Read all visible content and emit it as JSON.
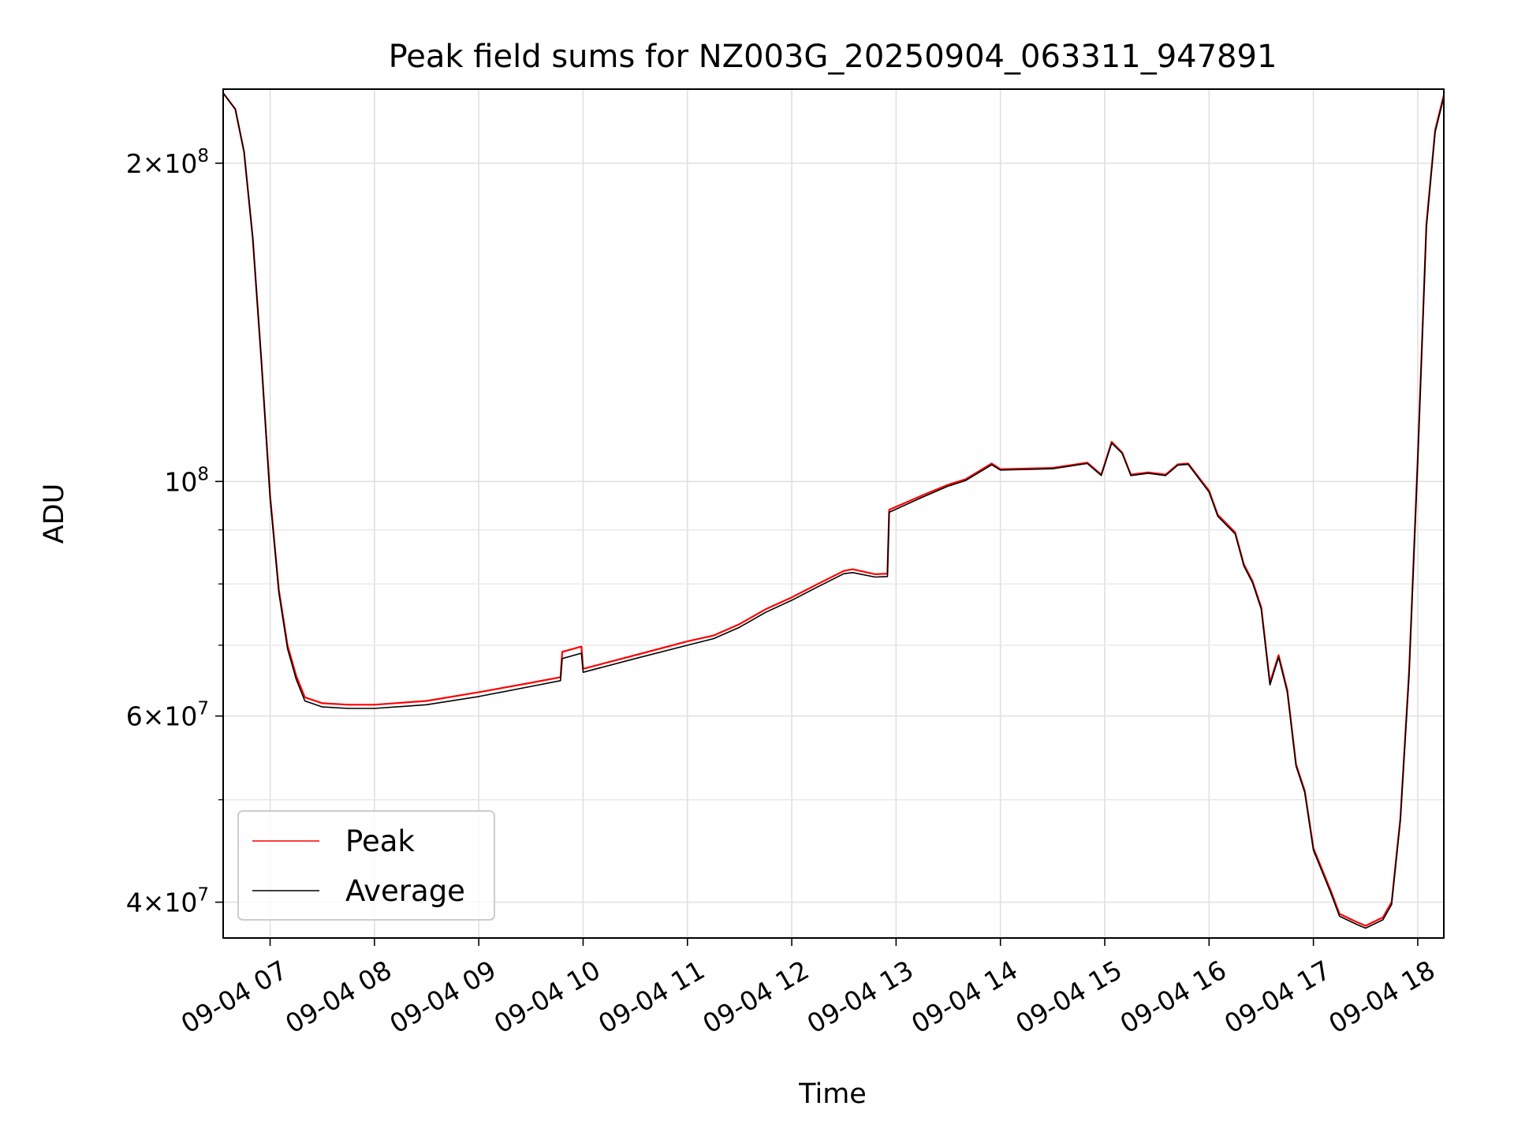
{
  "chart_data": {
    "type": "line",
    "title": "Peak field sums for NZ003G_20250904_063311_947891",
    "xlabel": "Time",
    "ylabel": "ADU",
    "y_scale": "log",
    "xlim": [
      "2025-09-04 06:33",
      "2025-09-04 18:15"
    ],
    "ylim": [
      37000000,
      235000000
    ],
    "grid": true,
    "legend_position": "lower-left",
    "x_tick_labels": [
      "09-04 07",
      "09-04 08",
      "09-04 09",
      "09-04 10",
      "09-04 11",
      "09-04 12",
      "09-04 13",
      "09-04 14",
      "09-04 15",
      "09-04 16",
      "09-04 17",
      "09-04 18"
    ],
    "y_tick_labels": [
      {
        "value": 200000000,
        "mantissa": "2",
        "exponent": "8"
      },
      {
        "value": 100000000,
        "mantissa": "",
        "exponent": "8"
      },
      {
        "value": 60000000,
        "mantissa": "6",
        "exponent": "7"
      },
      {
        "value": 40000000,
        "mantissa": "4",
        "exponent": "7"
      }
    ],
    "series": [
      {
        "name": "Peak",
        "color": "#ff0000",
        "x": [
          "2025-09-04 06:33",
          "2025-09-04 06:40",
          "2025-09-04 06:45",
          "2025-09-04 06:50",
          "2025-09-04 06:55",
          "2025-09-04 07:00",
          "2025-09-04 07:05",
          "2025-09-04 07:10",
          "2025-09-04 07:15",
          "2025-09-04 07:20",
          "2025-09-04 07:30",
          "2025-09-04 07:45",
          "2025-09-04 08:00",
          "2025-09-04 08:30",
          "2025-09-04 09:00",
          "2025-09-04 09:30",
          "2025-09-04 09:47",
          "2025-09-04 09:48",
          "2025-09-04 09:59",
          "2025-09-04 10:00",
          "2025-09-04 10:30",
          "2025-09-04 11:00",
          "2025-09-04 11:15",
          "2025-09-04 11:30",
          "2025-09-04 11:45",
          "2025-09-04 12:00",
          "2025-09-04 12:15",
          "2025-09-04 12:30",
          "2025-09-04 12:35",
          "2025-09-04 12:48",
          "2025-09-04 12:55",
          "2025-09-04 12:56",
          "2025-09-04 13:15",
          "2025-09-04 13:30",
          "2025-09-04 13:40",
          "2025-09-04 13:55",
          "2025-09-04 14:00",
          "2025-09-04 14:30",
          "2025-09-04 14:50",
          "2025-09-04 14:58",
          "2025-09-04 15:04",
          "2025-09-04 15:10",
          "2025-09-04 15:15",
          "2025-09-04 15:25",
          "2025-09-04 15:35",
          "2025-09-04 15:42",
          "2025-09-04 15:48",
          "2025-09-04 16:00",
          "2025-09-04 16:05",
          "2025-09-04 16:15",
          "2025-09-04 16:20",
          "2025-09-04 16:25",
          "2025-09-04 16:30",
          "2025-09-04 16:35",
          "2025-09-04 16:40",
          "2025-09-04 16:45",
          "2025-09-04 16:50",
          "2025-09-04 16:55",
          "2025-09-04 17:00",
          "2025-09-04 17:10",
          "2025-09-04 17:15",
          "2025-09-04 17:25",
          "2025-09-04 17:30",
          "2025-09-04 17:40",
          "2025-09-04 17:45",
          "2025-09-04 17:50",
          "2025-09-04 17:55",
          "2025-09-04 18:00",
          "2025-09-04 18:05",
          "2025-09-04 18:10",
          "2025-09-04 18:15"
        ],
        "y": [
          233000000,
          225000000,
          205000000,
          170000000,
          130000000,
          97000000,
          79000000,
          70000000,
          65500000,
          62500000,
          61700000,
          61500000,
          61500000,
          62000000,
          63200000,
          64500000,
          65300000,
          69000000,
          69800000,
          66500000,
          68500000,
          70600000,
          71500000,
          73300000,
          75700000,
          77700000,
          80000000,
          82300000,
          82600000,
          81700000,
          81800000,
          94000000,
          97000000,
          99300000,
          100500000,
          104000000,
          102700000,
          103000000,
          104200000,
          101500000,
          109000000,
          106500000,
          101500000,
          102000000,
          101500000,
          103800000,
          104000000,
          98000000,
          93000000,
          89500000,
          83500000,
          80500000,
          76000000,
          64500000,
          68500000,
          63500000,
          54000000,
          51000000,
          45000000,
          41000000,
          39000000,
          38300000,
          38000000,
          38700000,
          40000000,
          48000000,
          66000000,
          105000000,
          175000000,
          215000000,
          232000000
        ]
      },
      {
        "name": "Average",
        "color": "#000000",
        "x": [
          "2025-09-04 06:33",
          "2025-09-04 06:40",
          "2025-09-04 06:45",
          "2025-09-04 06:50",
          "2025-09-04 06:55",
          "2025-09-04 07:00",
          "2025-09-04 07:05",
          "2025-09-04 07:10",
          "2025-09-04 07:15",
          "2025-09-04 07:20",
          "2025-09-04 07:30",
          "2025-09-04 07:45",
          "2025-09-04 08:00",
          "2025-09-04 08:30",
          "2025-09-04 09:00",
          "2025-09-04 09:30",
          "2025-09-04 09:47",
          "2025-09-04 09:48",
          "2025-09-04 09:59",
          "2025-09-04 10:00",
          "2025-09-04 10:30",
          "2025-09-04 11:00",
          "2025-09-04 11:15",
          "2025-09-04 11:30",
          "2025-09-04 11:45",
          "2025-09-04 12:00",
          "2025-09-04 12:15",
          "2025-09-04 12:30",
          "2025-09-04 12:35",
          "2025-09-04 12:48",
          "2025-09-04 12:55",
          "2025-09-04 12:56",
          "2025-09-04 13:15",
          "2025-09-04 13:30",
          "2025-09-04 13:40",
          "2025-09-04 13:55",
          "2025-09-04 14:00",
          "2025-09-04 14:30",
          "2025-09-04 14:50",
          "2025-09-04 14:58",
          "2025-09-04 15:04",
          "2025-09-04 15:10",
          "2025-09-04 15:15",
          "2025-09-04 15:25",
          "2025-09-04 15:35",
          "2025-09-04 15:42",
          "2025-09-04 15:48",
          "2025-09-04 16:00",
          "2025-09-04 16:05",
          "2025-09-04 16:15",
          "2025-09-04 16:20",
          "2025-09-04 16:25",
          "2025-09-04 16:30",
          "2025-09-04 16:35",
          "2025-09-04 16:40",
          "2025-09-04 16:45",
          "2025-09-04 16:50",
          "2025-09-04 16:55",
          "2025-09-04 17:00",
          "2025-09-04 17:10",
          "2025-09-04 17:15",
          "2025-09-04 17:25",
          "2025-09-04 17:30",
          "2025-09-04 17:40",
          "2025-09-04 17:45",
          "2025-09-04 17:50",
          "2025-09-04 17:55",
          "2025-09-04 18:00",
          "2025-09-04 18:05",
          "2025-09-04 18:10",
          "2025-09-04 18:15"
        ],
        "y": [
          233000000,
          225000000,
          205000000,
          170000000,
          130000000,
          96500000,
          78500000,
          69500000,
          65000000,
          62000000,
          61200000,
          61000000,
          61000000,
          61500000,
          62600000,
          64000000,
          64800000,
          68000000,
          68800000,
          66000000,
          68000000,
          70000000,
          71000000,
          72800000,
          75200000,
          77200000,
          79500000,
          81800000,
          82000000,
          81200000,
          81300000,
          93500000,
          96600000,
          99000000,
          100200000,
          103700000,
          102500000,
          102800000,
          104000000,
          101300000,
          108700000,
          106300000,
          101300000,
          101800000,
          101300000,
          103600000,
          103800000,
          97700000,
          92700000,
          89200000,
          83200000,
          80200000,
          75700000,
          64200000,
          68200000,
          63200000,
          53800000,
          50800000,
          44800000,
          40800000,
          38800000,
          38100000,
          37800000,
          38500000,
          39800000,
          47800000,
          65500000,
          104500000,
          174000000,
          214000000,
          231000000
        ]
      }
    ]
  }
}
